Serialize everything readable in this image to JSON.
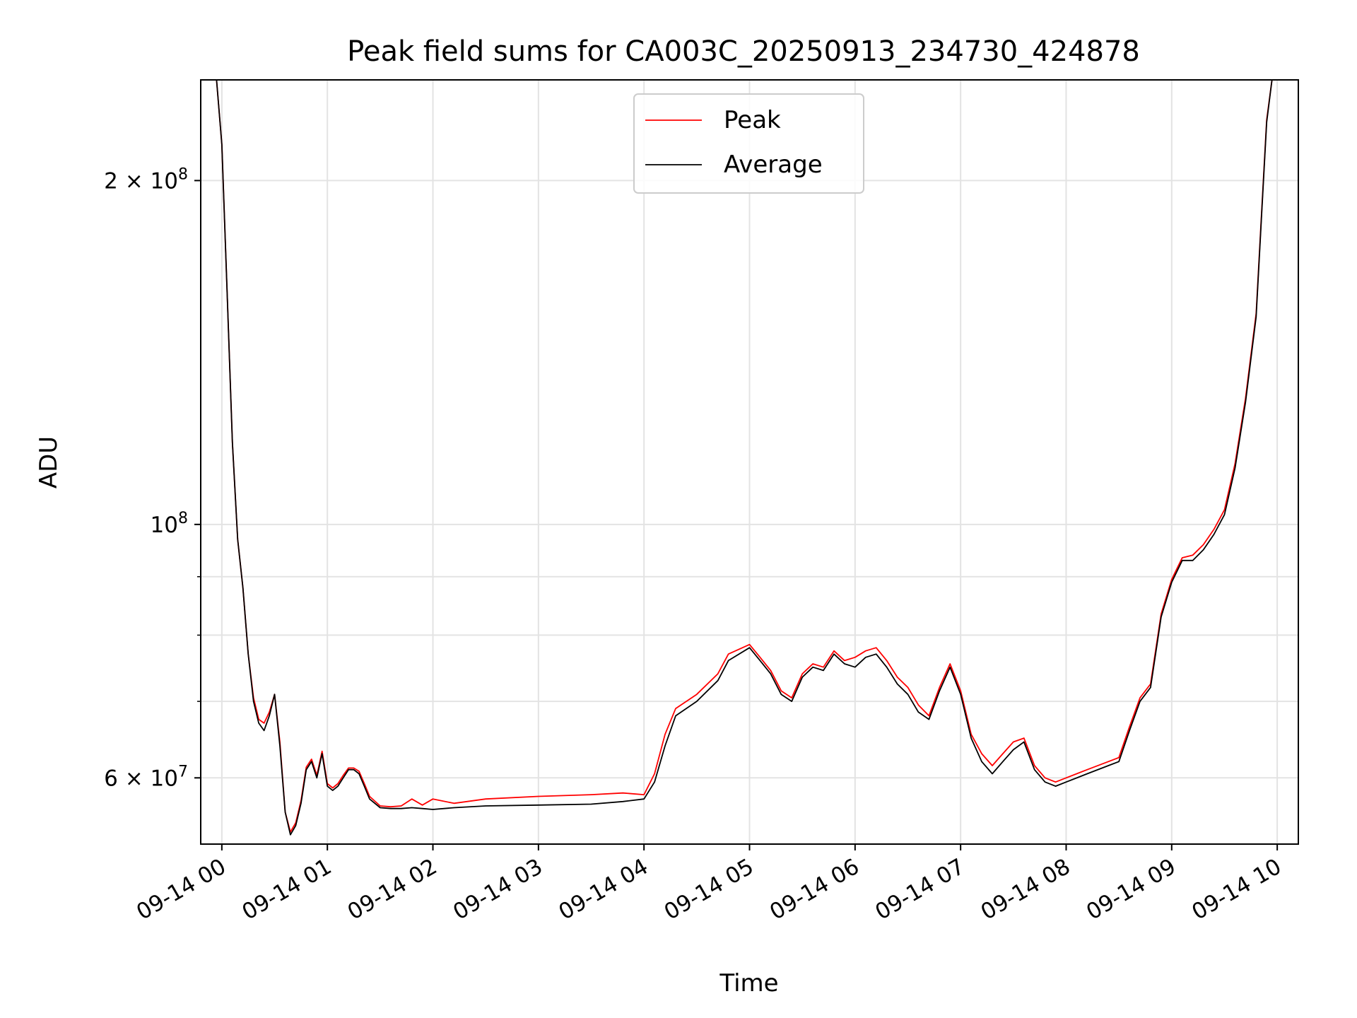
{
  "chart_data": {
    "type": "line",
    "title": "Peak field sums for CA003C_20250913_234730_424878",
    "xlabel": "Time",
    "ylabel": "ADU",
    "yscale": "log",
    "ylim": [
      52500000,
      245000000
    ],
    "xlim": [
      -0.2,
      10.2
    ],
    "grid": true,
    "legend_position": "top-center",
    "x_unit": "hours after 2025-09-14 00:00",
    "x_ticks": [
      {
        "x": 0,
        "label": "09-14 00"
      },
      {
        "x": 1,
        "label": "09-14 01"
      },
      {
        "x": 2,
        "label": "09-14 02"
      },
      {
        "x": 3,
        "label": "09-14 03"
      },
      {
        "x": 4,
        "label": "09-14 04"
      },
      {
        "x": 5,
        "label": "09-14 05"
      },
      {
        "x": 6,
        "label": "09-14 06"
      },
      {
        "x": 7,
        "label": "09-14 07"
      },
      {
        "x": 8,
        "label": "09-14 08"
      },
      {
        "x": 9,
        "label": "09-14 09"
      },
      {
        "x": 10,
        "label": "09-14 10"
      }
    ],
    "y_ticks_major": [
      {
        "value": 60000000,
        "base": "6 × 10",
        "exp": "7"
      },
      {
        "value": 100000000,
        "base": "10",
        "exp": "8"
      },
      {
        "value": 200000000,
        "base": "2 × 10",
        "exp": "8"
      }
    ],
    "y_ticks_minor": [
      70000000,
      80000000,
      90000000
    ],
    "series": [
      {
        "name": "Average",
        "color": "#000000",
        "x": [
          -0.2,
          -0.05,
          0.0,
          0.05,
          0.1,
          0.15,
          0.2,
          0.25,
          0.3,
          0.35,
          0.4,
          0.45,
          0.5,
          0.55,
          0.6,
          0.65,
          0.7,
          0.75,
          0.8,
          0.85,
          0.9,
          0.95,
          1.0,
          1.05,
          1.1,
          1.15,
          1.2,
          1.25,
          1.3,
          1.35,
          1.4,
          1.5,
          1.6,
          1.7,
          1.8,
          1.9,
          2.0,
          2.2,
          2.5,
          3.0,
          3.5,
          3.8,
          4.0,
          4.1,
          4.2,
          4.3,
          4.5,
          4.7,
          4.8,
          5.0,
          5.1,
          5.2,
          5.3,
          5.4,
          5.5,
          5.6,
          5.7,
          5.8,
          5.9,
          6.0,
          6.1,
          6.2,
          6.3,
          6.4,
          6.5,
          6.6,
          6.7,
          6.8,
          6.9,
          7.0,
          7.1,
          7.2,
          7.3,
          7.4,
          7.5,
          7.6,
          7.7,
          7.8,
          7.9,
          8.0,
          8.2,
          8.4,
          8.5,
          8.6,
          8.7,
          8.8,
          8.9,
          9.0,
          9.1,
          9.2,
          9.3,
          9.4,
          9.5,
          9.6,
          9.7,
          9.8,
          9.85,
          9.9,
          9.95,
          10.0
        ],
        "y": [
          245000000,
          245000000,
          215000000,
          160000000,
          118000000,
          97000000,
          88000000,
          77000000,
          70000000,
          67000000,
          66000000,
          68000000,
          71000000,
          64000000,
          56000000,
          53500000,
          54500000,
          57000000,
          61000000,
          62000000,
          60000000,
          63000000,
          59000000,
          58500000,
          59000000,
          60000000,
          61000000,
          61000000,
          60500000,
          59000000,
          57500000,
          56500000,
          56400000,
          56400000,
          56500000,
          56400000,
          56300000,
          56500000,
          56700000,
          56800000,
          56900000,
          57200000,
          57500000,
          59500000,
          64000000,
          68000000,
          70000000,
          73000000,
          76000000,
          78000000,
          76000000,
          74000000,
          71000000,
          70000000,
          73500000,
          75000000,
          74500000,
          77000000,
          75500000,
          75000000,
          76500000,
          77000000,
          75000000,
          72500000,
          71000000,
          68500000,
          67500000,
          71500000,
          75000000,
          71000000,
          65000000,
          62000000,
          60500000,
          62000000,
          63500000,
          64500000,
          61000000,
          59500000,
          59000000,
          59500000,
          60500000,
          61500000,
          62000000,
          66000000,
          70000000,
          72000000,
          83000000,
          89000000,
          93000000,
          93000000,
          95000000,
          98000000,
          102000000,
          112000000,
          128000000,
          152000000,
          185000000,
          225000000,
          245000000,
          245000000
        ]
      },
      {
        "name": "Peak",
        "color": "#ff0000",
        "x": [
          -0.2,
          -0.05,
          0.0,
          0.05,
          0.1,
          0.15,
          0.2,
          0.25,
          0.3,
          0.35,
          0.4,
          0.45,
          0.5,
          0.55,
          0.6,
          0.65,
          0.7,
          0.75,
          0.8,
          0.85,
          0.9,
          0.95,
          1.0,
          1.05,
          1.1,
          1.15,
          1.2,
          1.25,
          1.3,
          1.35,
          1.4,
          1.5,
          1.6,
          1.7,
          1.8,
          1.9,
          2.0,
          2.2,
          2.5,
          3.0,
          3.5,
          3.8,
          4.0,
          4.1,
          4.2,
          4.3,
          4.5,
          4.7,
          4.8,
          5.0,
          5.1,
          5.2,
          5.3,
          5.4,
          5.5,
          5.6,
          5.7,
          5.8,
          5.9,
          6.0,
          6.1,
          6.2,
          6.3,
          6.4,
          6.5,
          6.6,
          6.7,
          6.8,
          6.9,
          7.0,
          7.1,
          7.2,
          7.3,
          7.4,
          7.5,
          7.6,
          7.7,
          7.8,
          7.9,
          8.0,
          8.2,
          8.4,
          8.5,
          8.6,
          8.7,
          8.8,
          8.9,
          9.0,
          9.1,
          9.2,
          9.3,
          9.4,
          9.5,
          9.6,
          9.7,
          9.8,
          9.85,
          9.9,
          9.95,
          10.0
        ],
        "y": [
          245000000,
          245000000,
          215000000,
          160000000,
          118000000,
          97000000,
          88000000,
          77000000,
          70500000,
          67500000,
          67000000,
          68500000,
          71000000,
          64500000,
          56000000,
          53800000,
          54800000,
          57300000,
          61300000,
          62300000,
          60300000,
          63300000,
          59300000,
          58800000,
          59300000,
          60300000,
          61200000,
          61200000,
          60800000,
          59300000,
          57800000,
          56700000,
          56600000,
          56700000,
          57500000,
          56800000,
          57500000,
          57000000,
          57500000,
          57800000,
          58000000,
          58200000,
          58000000,
          60500000,
          65500000,
          69000000,
          71000000,
          74000000,
          77000000,
          78500000,
          76500000,
          74500000,
          71500000,
          70500000,
          74000000,
          75500000,
          75000000,
          77500000,
          76000000,
          76500000,
          77500000,
          78000000,
          76000000,
          73500000,
          72000000,
          69500000,
          68000000,
          72000000,
          75500000,
          71500000,
          65500000,
          63000000,
          61500000,
          63000000,
          64500000,
          65000000,
          61500000,
          60000000,
          59500000,
          60000000,
          61000000,
          62000000,
          62500000,
          66500000,
          70500000,
          72500000,
          83500000,
          89500000,
          93500000,
          94000000,
          96000000,
          99000000,
          103000000,
          113000000,
          129000000,
          153000000,
          186000000,
          226000000,
          245000000,
          245000000
        ]
      }
    ]
  }
}
